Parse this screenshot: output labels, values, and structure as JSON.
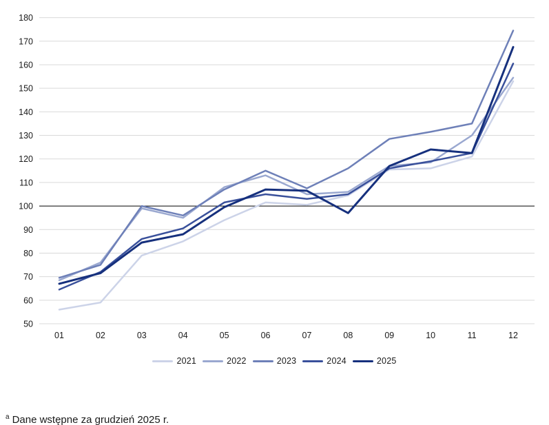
{
  "chart_data": {
    "type": "line",
    "title": "",
    "xlabel": "",
    "ylabel": "",
    "categories": [
      "01",
      "02",
      "03",
      "04",
      "05",
      "06",
      "07",
      "08",
      "09",
      "10",
      "11",
      "12"
    ],
    "ylim": [
      50,
      180
    ],
    "yticks": [
      50,
      60,
      70,
      80,
      90,
      100,
      110,
      120,
      130,
      140,
      150,
      160,
      170,
      180
    ],
    "reference_line": 100,
    "grid": "horizontal",
    "legend_position": "bottom",
    "gridline_color": "#d9d9d9",
    "reference_line_color": "#000000",
    "axis_text_color": "#1a1a1a",
    "series": [
      {
        "name": "2021",
        "color": "#ccd3e8",
        "values": [
          56,
          59,
          79,
          85,
          94,
          101.5,
          100.5,
          104.5,
          115.5,
          116,
          121,
          153
        ]
      },
      {
        "name": "2022",
        "color": "#9aa8d0",
        "values": [
          68.5,
          76,
          99,
          95,
          108,
          113,
          105,
          106,
          117,
          118.5,
          130,
          154.5
        ]
      },
      {
        "name": "2023",
        "color": "#6e80b8",
        "values": [
          69.5,
          75,
          100,
          96,
          107,
          115,
          107.5,
          116,
          128.5,
          131.5,
          135,
          174.5
        ]
      },
      {
        "name": "2024",
        "color": "#39509b",
        "values": [
          64.5,
          72,
          86,
          90.5,
          101.5,
          105,
          103,
          105,
          116,
          119,
          122.5,
          160.5
        ]
      },
      {
        "name": "2025",
        "color": "#16307d",
        "values": [
          67,
          71.5,
          84.5,
          88,
          99.5,
          107,
          106.5,
          97,
          117,
          124,
          122.5,
          167.5
        ]
      }
    ]
  },
  "footnote": {
    "marker": "a",
    "text": "Dane wstępne za grudzień 2025 r."
  }
}
